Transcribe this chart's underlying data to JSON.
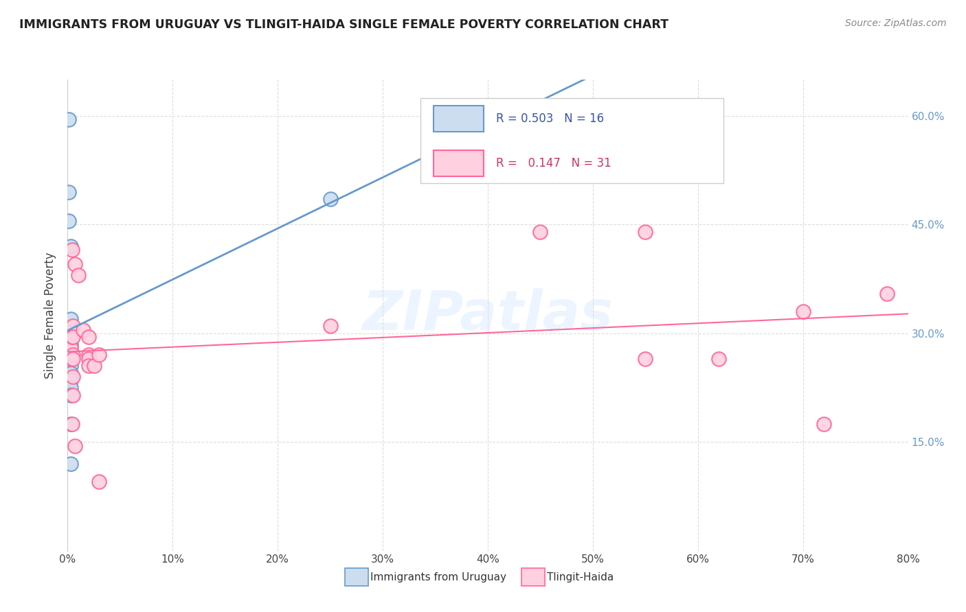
{
  "title": "IMMIGRANTS FROM URUGUAY VS TLINGIT-HAIDA SINGLE FEMALE POVERTY CORRELATION CHART",
  "source": "Source: ZipAtlas.com",
  "ylabel": "Single Female Poverty",
  "xlim": [
    0.0,
    0.8
  ],
  "ylim": [
    0.0,
    0.65
  ],
  "x_ticks": [
    0.0,
    0.1,
    0.2,
    0.3,
    0.4,
    0.5,
    0.6,
    0.7,
    0.8
  ],
  "y_ticks_right": [
    0.15,
    0.3,
    0.45,
    0.6
  ],
  "legend_labels": [
    "Immigrants from Uruguay",
    "Tlingit-Haida"
  ],
  "blue_R": "0.503",
  "blue_N": "16",
  "pink_R": "0.147",
  "pink_N": "31",
  "blue_color": "#6699CC",
  "pink_color": "#FF6699",
  "blue_face": "#CCDDF0",
  "pink_face": "#FFD0E0",
  "blue_scatter": [
    [
      0.001,
      0.595
    ],
    [
      0.001,
      0.495
    ],
    [
      0.001,
      0.455
    ],
    [
      0.003,
      0.42
    ],
    [
      0.003,
      0.285
    ],
    [
      0.003,
      0.275
    ],
    [
      0.003,
      0.265
    ],
    [
      0.003,
      0.255
    ],
    [
      0.003,
      0.245
    ],
    [
      0.003,
      0.235
    ],
    [
      0.003,
      0.225
    ],
    [
      0.003,
      0.215
    ],
    [
      0.003,
      0.175
    ],
    [
      0.003,
      0.12
    ],
    [
      0.003,
      0.32
    ],
    [
      0.25,
      0.485
    ]
  ],
  "pink_scatter": [
    [
      0.003,
      0.295
    ],
    [
      0.003,
      0.28
    ],
    [
      0.003,
      0.265
    ],
    [
      0.004,
      0.415
    ],
    [
      0.004,
      0.295
    ],
    [
      0.004,
      0.175
    ],
    [
      0.005,
      0.31
    ],
    [
      0.005,
      0.295
    ],
    [
      0.005,
      0.27
    ],
    [
      0.005,
      0.265
    ],
    [
      0.005,
      0.24
    ],
    [
      0.005,
      0.215
    ],
    [
      0.007,
      0.395
    ],
    [
      0.007,
      0.145
    ],
    [
      0.01,
      0.38
    ],
    [
      0.015,
      0.305
    ],
    [
      0.02,
      0.295
    ],
    [
      0.02,
      0.27
    ],
    [
      0.02,
      0.265
    ],
    [
      0.02,
      0.255
    ],
    [
      0.025,
      0.255
    ],
    [
      0.03,
      0.27
    ],
    [
      0.03,
      0.095
    ],
    [
      0.25,
      0.31
    ],
    [
      0.45,
      0.44
    ],
    [
      0.55,
      0.44
    ],
    [
      0.55,
      0.265
    ],
    [
      0.62,
      0.265
    ],
    [
      0.7,
      0.33
    ],
    [
      0.72,
      0.175
    ],
    [
      0.78,
      0.355
    ]
  ],
  "watermark": "ZIPatlas",
  "background_color": "#FFFFFF",
  "grid_color": "#DDDDDD"
}
